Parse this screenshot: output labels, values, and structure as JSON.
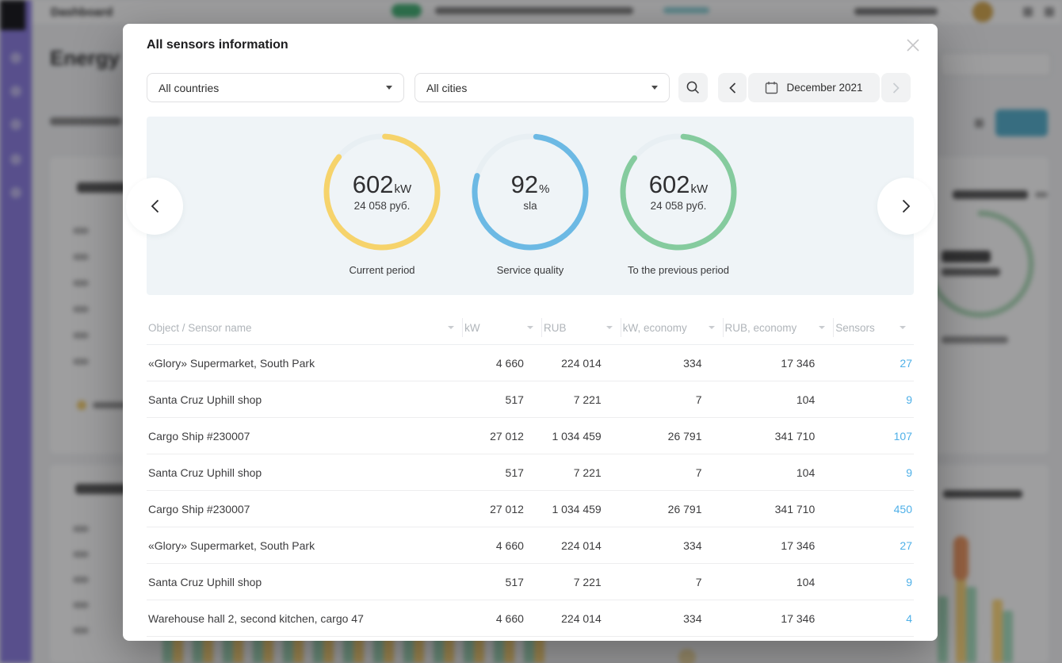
{
  "background": {
    "topbar": {
      "title": "Dashboard"
    },
    "page_heading": "Energy"
  },
  "modal": {
    "title": "All sensors information",
    "filters": {
      "countries": "All countries",
      "cities": "All cities",
      "date_label": "December 2021"
    },
    "carousel": {
      "gauges": [
        {
          "value": "602",
          "unit": "kW",
          "sub": "24 058 руб.",
          "label": "Current period",
          "color": "#f6d36b",
          "fraction": 0.85,
          "start_deg": -87
        },
        {
          "value": "92",
          "unit": "%",
          "sub": "sla",
          "label": "Service quality",
          "color": "#6cb9e4",
          "fraction": 0.78,
          "start_deg": -84
        },
        {
          "value": "602",
          "unit": "kW",
          "sub": "24 058 руб.",
          "label": "To the previous period",
          "color": "#85cb9e",
          "fraction": 0.84,
          "start_deg": -85
        }
      ]
    },
    "table": {
      "columns": [
        "Object / Sensor name",
        "kW",
        "RUB",
        "kW, economy",
        "RUB, economy",
        "Sensors"
      ],
      "rows": [
        {
          "cells": [
            "«Glory» Supermarket, South Park",
            "4 660",
            "224 014",
            "334",
            "17 346",
            "27"
          ]
        },
        {
          "cells": [
            "Santa Cruz Uphill shop",
            "517",
            "7 221",
            "7",
            "104",
            "9"
          ]
        },
        {
          "cells": [
            "Cargo Ship #230007",
            "27 012",
            "1 034 459",
            "26 791",
            "341 710",
            "107"
          ]
        },
        {
          "cells": [
            "Santa Cruz Uphill shop",
            "517",
            "7 221",
            "7",
            "104",
            "9"
          ]
        },
        {
          "cells": [
            "Cargo Ship #230007",
            "27 012",
            "1 034 459",
            "26 791",
            "341 710",
            "450"
          ]
        },
        {
          "cells": [
            "«Glory» Supermarket, South Park",
            "4 660",
            "224 014",
            "334",
            "17 346",
            "27"
          ]
        },
        {
          "cells": [
            "Santa Cruz Uphill shop",
            "517",
            "7 221",
            "7",
            "104",
            "9"
          ]
        },
        {
          "cells": [
            "Warehouse hall 2, second kitchen, cargo 47",
            "4 660",
            "224 014",
            "334",
            "17 346",
            "4"
          ]
        }
      ]
    }
  },
  "icons": {
    "close": "x-icon",
    "search": "magnifier-icon",
    "calendar": "calendar-icon",
    "prev": "chevron-left-icon",
    "next": "chevron-right-icon",
    "sort": "caret-down-icon"
  },
  "colors": {
    "link_blue": "#4fb0e8",
    "panel_bg": "#eff4f7",
    "gauge_yellow": "#f6d36b",
    "gauge_blue": "#6cb9e4",
    "gauge_green": "#85cb9e",
    "sidebar_purple": "#8a7ce0",
    "badge_green": "#46b578"
  }
}
